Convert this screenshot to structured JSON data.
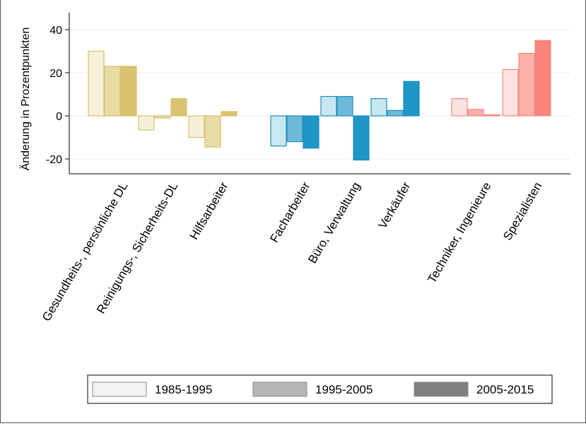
{
  "chart_data": {
    "type": "bar",
    "ylabel": "Änderung in Prozentpunkten",
    "xlabel": "",
    "ylim": [
      -27,
      47
    ],
    "yticks": [
      40,
      20,
      0,
      -20
    ],
    "ytick_labels": [
      "40",
      "20",
      "0",
      "-20"
    ],
    "grid": true,
    "legend_position": "bottom",
    "series": [
      {
        "name": "1985-1995",
        "legend_color": "#f2f2f2"
      },
      {
        "name": "1995-2005",
        "legend_color": "#b5b5b5"
      },
      {
        "name": "2005-2015",
        "legend_color": "#808080"
      }
    ],
    "categories": [
      {
        "label": "Gesundheits-, persönliche DL",
        "group": 0,
        "values": [
          30,
          23,
          23
        ],
        "fills": [
          "#f6f0d8",
          "#e8dca6",
          "#d9c36e"
        ],
        "stroke": "#d7c06b"
      },
      {
        "label": "Reinigungs-, Sicherheits-DL",
        "group": 0,
        "values": [
          -6.5,
          -1,
          8
        ],
        "fills": [
          "#f6f0d8",
          "#e8dca6",
          "#d9c36e"
        ],
        "stroke": "#d7c06b"
      },
      {
        "label": "Hilfsarbeiter",
        "group": 0,
        "values": [
          -10,
          -14.5,
          2
        ],
        "fills": [
          "#f6f0d8",
          "#e8dca6",
          "#d9c36e"
        ],
        "stroke": "#d7c06b"
      },
      {
        "label": "Facharbeiter",
        "group": 1,
        "values": [
          -14,
          -12,
          -15
        ],
        "fills": [
          "#c9e7f1",
          "#6cbad8",
          "#1f97c6"
        ],
        "stroke": "#1f8fbf"
      },
      {
        "label": "Büro, Verwaltung",
        "group": 1,
        "values": [
          9,
          9,
          -20.5
        ],
        "fills": [
          "#c9e7f1",
          "#6cbad8",
          "#1f97c6"
        ],
        "stroke": "#1f8fbf"
      },
      {
        "label": "Verkäufer",
        "group": 1,
        "values": [
          8,
          2.5,
          16
        ],
        "fills": [
          "#c9e7f1",
          "#6cbad8",
          "#1f97c6"
        ],
        "stroke": "#1f8fbf"
      },
      {
        "label": "Techniker, Ingenieure",
        "group": 2,
        "values": [
          8,
          3,
          0.5
        ],
        "fills": [
          "#fde2e0",
          "#fbb0a9",
          "#fa857d"
        ],
        "stroke": "#f08a82"
      },
      {
        "label": "Spezialisten",
        "group": 2,
        "values": [
          21.5,
          29,
          35
        ],
        "fills": [
          "#fde2e0",
          "#fbb0a9",
          "#fa857d"
        ],
        "stroke": "#f08a82"
      }
    ]
  }
}
